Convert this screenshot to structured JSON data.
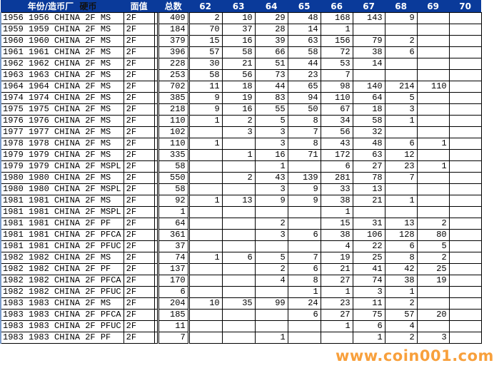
{
  "headers": {
    "name": "年份/造币厂",
    "coin": "硬币",
    "denom": "面值",
    "total": "总数",
    "years": [
      "62",
      "63",
      "64",
      "65",
      "66",
      "67",
      "68",
      "69",
      "70"
    ]
  },
  "rows": [
    {
      "name": "1956 1956 CHINA 2F MS",
      "denom": "2F",
      "total": "409",
      "v": [
        "2",
        "10",
        "29",
        "48",
        "168",
        "143",
        "9",
        "",
        ""
      ]
    },
    {
      "name": "1959 1959 CHINA 2F MS",
      "denom": "2F",
      "total": "184",
      "v": [
        "70",
        "37",
        "28",
        "14",
        "1",
        "",
        "",
        "",
        ""
      ]
    },
    {
      "name": "1960 1960 CHINA 2F MS",
      "denom": "2F",
      "total": "379",
      "v": [
        "15",
        "16",
        "39",
        "63",
        "156",
        "79",
        "2",
        "",
        ""
      ]
    },
    {
      "name": "1961 1961 CHINA 2F MS",
      "denom": "2F",
      "total": "396",
      "v": [
        "57",
        "58",
        "66",
        "58",
        "72",
        "38",
        "6",
        "",
        ""
      ]
    },
    {
      "name": "1962 1962 CHINA 2F MS",
      "denom": "2F",
      "total": "228",
      "v": [
        "30",
        "21",
        "51",
        "44",
        "53",
        "14",
        "",
        "",
        ""
      ]
    },
    {
      "name": "1963 1963 CHINA 2F MS",
      "denom": "2F",
      "total": "253",
      "v": [
        "58",
        "56",
        "73",
        "23",
        "7",
        "",
        "",
        "",
        ""
      ]
    },
    {
      "name": "1964 1964 CHINA 2F MS",
      "denom": "2F",
      "total": "702",
      "v": [
        "11",
        "18",
        "44",
        "65",
        "98",
        "140",
        "214",
        "110",
        ""
      ]
    },
    {
      "name": "1974 1974 CHINA 2F MS",
      "denom": "2F",
      "total": "385",
      "v": [
        "9",
        "19",
        "83",
        "94",
        "110",
        "64",
        "5",
        "",
        ""
      ]
    },
    {
      "name": "1975 1975 CHINA 2F MS",
      "denom": "2F",
      "total": "218",
      "v": [
        "9",
        "16",
        "55",
        "50",
        "67",
        "18",
        "3",
        "",
        ""
      ]
    },
    {
      "name": "1976 1976 CHINA 2F MS",
      "denom": "2F",
      "total": "110",
      "v": [
        "1",
        "2",
        "5",
        "8",
        "34",
        "58",
        "1",
        "",
        ""
      ]
    },
    {
      "name": "1977 1977 CHINA 2F MS",
      "denom": "2F",
      "total": "102",
      "v": [
        "",
        "3",
        "3",
        "7",
        "56",
        "32",
        "",
        "",
        ""
      ]
    },
    {
      "name": "1978 1978 CHINA 2F MS",
      "denom": "2F",
      "total": "110",
      "v": [
        "1",
        "",
        "3",
        "8",
        "43",
        "48",
        "6",
        "1",
        ""
      ]
    },
    {
      "name": "1979 1979 CHINA 2F MS",
      "denom": "2F",
      "total": "335",
      "v": [
        "",
        "1",
        "16",
        "71",
        "172",
        "63",
        "12",
        "",
        ""
      ]
    },
    {
      "name": "1979 1979 CHINA 2F MSPL",
      "denom": "2F",
      "total": "58",
      "v": [
        "",
        "",
        "1",
        "",
        "6",
        "27",
        "23",
        "1",
        ""
      ]
    },
    {
      "name": "1980 1980 CHINA 2F MS",
      "denom": "2F",
      "total": "550",
      "v": [
        "",
        "2",
        "43",
        "139",
        "281",
        "78",
        "7",
        "",
        ""
      ]
    },
    {
      "name": "1980 1980 CHINA 2F MSPL",
      "denom": "2F",
      "total": "58",
      "v": [
        "",
        "",
        "3",
        "9",
        "33",
        "13",
        "",
        "",
        ""
      ]
    },
    {
      "name": "1981 1981 CHINA 2F MS",
      "denom": "2F",
      "total": "92",
      "v": [
        "1",
        "13",
        "9",
        "9",
        "38",
        "21",
        "1",
        "",
        ""
      ]
    },
    {
      "name": "1981 1981 CHINA 2F MSPL",
      "denom": "2F",
      "total": "1",
      "v": [
        "",
        "",
        "",
        "",
        "1",
        "",
        "",
        "",
        ""
      ]
    },
    {
      "name": "1981 1981 CHINA 2F PF",
      "denom": "2F",
      "total": "64",
      "v": [
        "",
        "",
        "2",
        "",
        "15",
        "31",
        "13",
        "2",
        ""
      ]
    },
    {
      "name": "1981 1981 CHINA 2F PFCA",
      "denom": "2F",
      "total": "361",
      "v": [
        "",
        "",
        "3",
        "6",
        "38",
        "106",
        "128",
        "80",
        ""
      ]
    },
    {
      "name": "1981 1981 CHINA 2F PFUC",
      "denom": "2F",
      "total": "37",
      "v": [
        "",
        "",
        "",
        "",
        "4",
        "22",
        "6",
        "5",
        ""
      ]
    },
    {
      "name": "1982 1982 CHINA 2F MS",
      "denom": "2F",
      "total": "74",
      "v": [
        "1",
        "6",
        "5",
        "7",
        "19",
        "25",
        "8",
        "2",
        ""
      ]
    },
    {
      "name": "1982 1982 CHINA 2F PF",
      "denom": "2F",
      "total": "137",
      "v": [
        "",
        "",
        "2",
        "6",
        "21",
        "41",
        "42",
        "25",
        ""
      ]
    },
    {
      "name": "1982 1982 CHINA 2F PFCA",
      "denom": "2F",
      "total": "170",
      "v": [
        "",
        "",
        "4",
        "8",
        "27",
        "74",
        "38",
        "19",
        ""
      ]
    },
    {
      "name": "1982 1982 CHINA 2F PFUC",
      "denom": "2F",
      "total": "6",
      "v": [
        "",
        "",
        "",
        "1",
        "1",
        "3",
        "1",
        "",
        ""
      ]
    },
    {
      "name": "1983 1983 CHINA 2F MS",
      "denom": "2F",
      "total": "204",
      "v": [
        "10",
        "35",
        "99",
        "24",
        "23",
        "11",
        "2",
        "",
        ""
      ]
    },
    {
      "name": "1983 1983 CHINA 2F PFCA",
      "denom": "2F",
      "total": "185",
      "v": [
        "",
        "",
        "",
        "6",
        "27",
        "75",
        "57",
        "20",
        ""
      ]
    },
    {
      "name": "1983 1983 CHINA 2F PFUC",
      "denom": "2F",
      "total": "11",
      "v": [
        "",
        "",
        "",
        "",
        "1",
        "6",
        "4",
        "",
        ""
      ]
    },
    {
      "name": "1983 1983 CHINA 2F PF",
      "denom": "2F",
      "total": "7",
      "v": [
        "",
        "",
        "1",
        "",
        "",
        "1",
        "2",
        "3",
        ""
      ]
    }
  ],
  "watermark": "www.coin001.com",
  "colors": {
    "header_bg": "#0a3a9a",
    "header_text": "#ffffff",
    "watermark": "#f8a03c"
  }
}
